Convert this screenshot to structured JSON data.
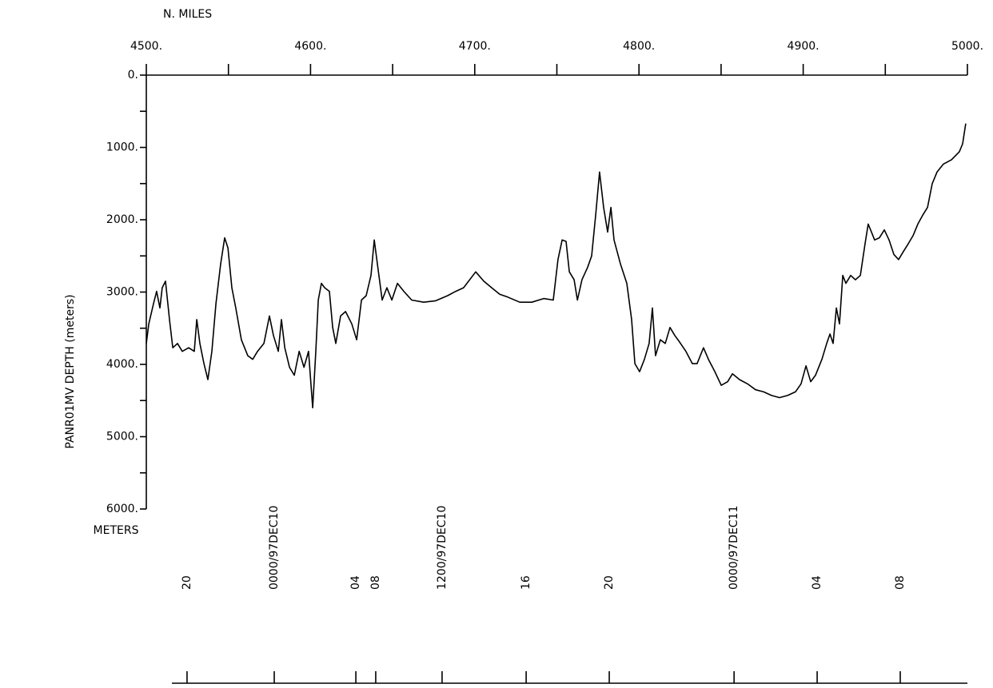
{
  "chart_data": {
    "type": "line",
    "x_label": "N. MILES",
    "y_label": "PANR01MV   DEPTH  (meters)",
    "y_unit": "METERS",
    "xlim": [
      4500,
      5000
    ],
    "xticks": [
      {
        "value": 4500,
        "label": "4500."
      },
      {
        "value": 4600,
        "label": "4600."
      },
      {
        "value": 4700,
        "label": "4700."
      },
      {
        "value": 4800,
        "label": "4800."
      },
      {
        "value": 4900,
        "label": "4900."
      },
      {
        "value": 5000,
        "label": "5000."
      }
    ],
    "x_minor_ticks": [
      4550,
      4650,
      4750,
      4850,
      4950
    ],
    "ylim": [
      0,
      6000
    ],
    "y_inverted": true,
    "yticks": [
      {
        "value": 0,
        "label": "0."
      },
      {
        "value": 1000,
        "label": "1000."
      },
      {
        "value": 2000,
        "label": "2000."
      },
      {
        "value": 3000,
        "label": "3000."
      },
      {
        "value": 4000,
        "label": "4000."
      },
      {
        "value": 5000,
        "label": "5000."
      },
      {
        "value": 6000,
        "label": "6000."
      }
    ],
    "y_minor_ticks": [
      500,
      1500,
      2500,
      3500,
      4500,
      5500
    ],
    "time_ticks": [
      {
        "value": 4524.8,
        "label": "20"
      },
      {
        "value": 4577.9,
        "label": "0000/97DEC10"
      },
      {
        "value": 4627.6,
        "label": "04"
      },
      {
        "value": 4639.7,
        "label": "08"
      },
      {
        "value": 4680.1,
        "label": "1200/97DEC10"
      },
      {
        "value": 4731.3,
        "label": "16"
      },
      {
        "value": 4781.9,
        "label": "20"
      },
      {
        "value": 4857.9,
        "label": "0000/97DEC11"
      },
      {
        "value": 4908.5,
        "label": "04"
      },
      {
        "value": 4959.1,
        "label": "08"
      }
    ],
    "x": [
      4500.0,
      4501.5,
      4504.4,
      4506.3,
      4508.3,
      4509.7,
      4511.7,
      4514.1,
      4516.1,
      4519.0,
      4521.9,
      4525.8,
      4529.2,
      4530.7,
      4532.6,
      4535.1,
      4537.5,
      4539.9,
      4542.4,
      4545.3,
      4547.7,
      4549.7,
      4552.1,
      4554.5,
      4557.9,
      4561.8,
      4564.8,
      4567.7,
      4571.6,
      4575.0,
      4577.4,
      4580.4,
      4582.3,
      4584.3,
      4587.2,
      4590.1,
      4593.1,
      4596.0,
      4598.8,
      4601.3,
      4603.2,
      4604.7,
      4606.6,
      4608.6,
      4611.5,
      4613.5,
      4615.4,
      4618.3,
      4621.3,
      4625.1,
      4628.1,
      4631.0,
      4633.9,
      4636.8,
      4638.8,
      4640.7,
      4643.6,
      4646.5,
      4649.5,
      4652.9,
      4656.8,
      4661.6,
      4668.9,
      4676.2,
      4683.5,
      4688.4,
      4693.2,
      4700.6,
      4705.5,
      4710.3,
      4715.2,
      4720.1,
      4727.4,
      4734.7,
      4742.0,
      4747.8,
      4750.7,
      4753.2,
      4755.6,
      4757.6,
      4760.5,
      4762.5,
      4765.3,
      4768.7,
      4771.2,
      4773.6,
      4776.0,
      4778.5,
      4780.9,
      4782.9,
      4784.8,
      4788.7,
      4792.6,
      4795.5,
      4797.5,
      4800.4,
      4803.3,
      4806.2,
      4808.2,
      4810.1,
      4813.0,
      4816.0,
      4818.9,
      4821.8,
      4824.7,
      4828.6,
      4832.5,
      4835.4,
      4839.3,
      4842.3,
      4846.2,
      4850.1,
      4854.0,
      4856.9,
      4861.2,
      4866.1,
      4871.0,
      4875.9,
      4880.7,
      4885.6,
      4890.5,
      4895.3,
      4898.7,
      4901.7,
      4904.6,
      4907.5,
      4911.4,
      4914.3,
      4916.3,
      4918.2,
      4920.2,
      4922.1,
      4924.1,
      4926.0,
      4928.9,
      4931.8,
      4934.8,
      4937.7,
      4939.6,
      4941.6,
      4943.5,
      4946.4,
      4949.4,
      4952.3,
      4955.2,
      4958.1,
      4961.0,
      4964.0,
      4966.9,
      4969.8,
      4972.7,
      4975.7,
      4978.6,
      4981.5,
      4985.4,
      4990.3,
      4995.1,
      4997.1,
      4999.0
    ],
    "series": [
      {
        "color": "#000000",
        "values": [
          3710,
          3440,
          3160,
          2990,
          3220,
          2940,
          2850,
          3380,
          3770,
          3710,
          3820,
          3770,
          3820,
          3380,
          3710,
          3990,
          4210,
          3820,
          3160,
          2610,
          2250,
          2390,
          2940,
          3220,
          3660,
          3880,
          3930,
          3820,
          3710,
          3330,
          3600,
          3820,
          3380,
          3770,
          4040,
          4150,
          3820,
          4040,
          3820,
          4600,
          3820,
          3110,
          2880,
          2940,
          2990,
          3490,
          3710,
          3330,
          3270,
          3440,
          3660,
          3110,
          3050,
          2770,
          2280,
          2610,
          3110,
          2940,
          3110,
          2880,
          2990,
          3110,
          3140,
          3120,
          3050,
          2990,
          2940,
          2720,
          2850,
          2940,
          3030,
          3070,
          3140,
          3140,
          3090,
          3110,
          2550,
          2280,
          2300,
          2720,
          2830,
          3110,
          2830,
          2660,
          2500,
          1940,
          1340,
          1830,
          2170,
          1830,
          2280,
          2610,
          2880,
          3380,
          3990,
          4100,
          3930,
          3710,
          3220,
          3880,
          3660,
          3710,
          3490,
          3600,
          3690,
          3820,
          3990,
          3990,
          3770,
          3930,
          4100,
          4290,
          4240,
          4130,
          4210,
          4270,
          4350,
          4380,
          4430,
          4460,
          4430,
          4380,
          4270,
          4020,
          4240,
          4150,
          3930,
          3710,
          3580,
          3710,
          3220,
          3440,
          2770,
          2880,
          2770,
          2830,
          2770,
          2330,
          2060,
          2170,
          2280,
          2250,
          2140,
          2280,
          2480,
          2550,
          2440,
          2330,
          2220,
          2060,
          1940,
          1830,
          1500,
          1340,
          1230,
          1170,
          1060,
          950,
          670
        ]
      }
    ]
  }
}
